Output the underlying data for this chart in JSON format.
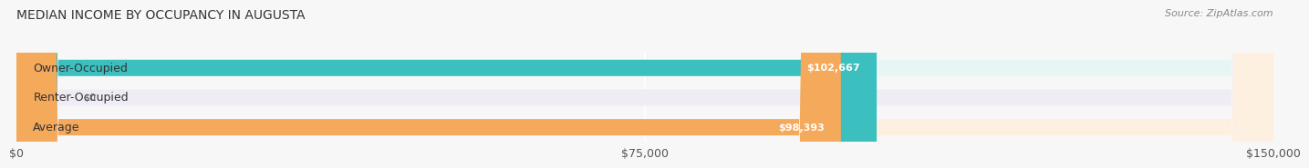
{
  "title": "MEDIAN INCOME BY OCCUPANCY IN AUGUSTA",
  "source": "Source: ZipAtlas.com",
  "categories": [
    "Owner-Occupied",
    "Renter-Occupied",
    "Average"
  ],
  "values": [
    102667,
    0,
    98393
  ],
  "value_labels": [
    "$102,667",
    "$0",
    "$98,393"
  ],
  "bar_colors": [
    "#3cbfbf",
    "#c8b4d8",
    "#f5a95a"
  ],
  "bar_bg_colors": [
    "#e8f5f5",
    "#f0ecf5",
    "#fdf0e0"
  ],
  "xlim": [
    0,
    150000
  ],
  "xticks": [
    0,
    75000,
    150000
  ],
  "xticklabels": [
    "$0",
    "$75,000",
    "$150,000"
  ],
  "bar_height": 0.55,
  "label_fontsize": 9,
  "title_fontsize": 10,
  "source_fontsize": 8,
  "value_label_fontsize": 8,
  "bg_color": "#f7f7f7",
  "grid_color": "#ffffff",
  "text_color": "#555555"
}
